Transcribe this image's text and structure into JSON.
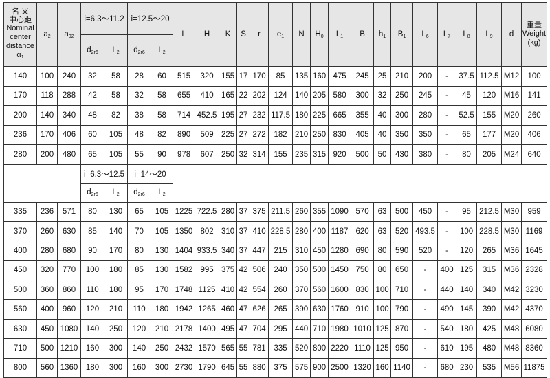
{
  "header": {
    "nominal_cn": [
      "名 义",
      "中心距"
    ],
    "nominal_en": [
      "Nominal",
      "center",
      "distance"
    ],
    "nominal_sym": {
      "t": "α",
      "s": "1"
    },
    "a2": {
      "t": "a",
      "s": "2"
    },
    "a02": {
      "t": "a",
      "s": "02"
    },
    "group1_top": "i=6.3～11.2",
    "group2_top": "i=12.5～20",
    "group1_bottom": "i=6.3～12.5",
    "group2_bottom": "i=14～20",
    "sub_cols": [
      {
        "t": "d",
        "s": "2r6"
      },
      {
        "t": "L",
        "s": "2"
      },
      {
        "t": "d",
        "s": "2r6"
      },
      {
        "t": "L",
        "s": "2"
      }
    ],
    "cols": [
      {
        "t": "L",
        "s": ""
      },
      {
        "t": "H",
        "s": ""
      },
      {
        "t": "K",
        "s": ""
      },
      {
        "t": "S",
        "s": ""
      },
      {
        "t": "r",
        "s": ""
      },
      {
        "t": "e",
        "s": "1"
      },
      {
        "t": "N",
        "s": ""
      },
      {
        "t": "H",
        "s": "0"
      },
      {
        "t": "L",
        "s": "1"
      },
      {
        "t": "B",
        "s": ""
      },
      {
        "t": "h",
        "s": "1"
      },
      {
        "t": "B",
        "s": "1"
      },
      {
        "t": "L",
        "s": "6"
      },
      {
        "t": "L",
        "s": "7"
      },
      {
        "t": "L",
        "s": "8"
      },
      {
        "t": "L",
        "s": "9"
      },
      {
        "t": "d",
        "s": ""
      }
    ],
    "weight_cn": "重量",
    "weight_en": [
      "Weight",
      "(kg)"
    ]
  },
  "rows_top": [
    [
      "140",
      "100",
      "240",
      "32",
      "58",
      "28",
      "60",
      "515",
      "320",
      "155",
      "17",
      "170",
      "85",
      "135",
      "160",
      "475",
      "245",
      "25",
      "210",
      "200",
      "-",
      "37.5",
      "112.5",
      "M12",
      "100"
    ],
    [
      "170",
      "118",
      "288",
      "42",
      "58",
      "32",
      "58",
      "655",
      "410",
      "165",
      "22",
      "202",
      "124",
      "140",
      "205",
      "580",
      "300",
      "32",
      "250",
      "245",
      "-",
      "45",
      "120",
      "M16",
      "141"
    ],
    [
      "200",
      "140",
      "340",
      "48",
      "82",
      "38",
      "58",
      "714",
      "452.5",
      "195",
      "27",
      "232",
      "117.5",
      "180",
      "225",
      "665",
      "355",
      "40",
      "300",
      "280",
      "-",
      "52.5",
      "155",
      "M20",
      "260"
    ],
    [
      "236",
      "170",
      "406",
      "60",
      "105",
      "48",
      "82",
      "890",
      "509",
      "225",
      "27",
      "272",
      "182",
      "210",
      "250",
      "830",
      "405",
      "40",
      "350",
      "350",
      "-",
      "65",
      "177",
      "M20",
      "406"
    ],
    [
      "280",
      "200",
      "480",
      "65",
      "105",
      "55",
      "90",
      "978",
      "607",
      "250",
      "32",
      "314",
      "155",
      "235",
      "315",
      "920",
      "500",
      "50",
      "430",
      "380",
      "-",
      "80",
      "205",
      "M24",
      "640"
    ]
  ],
  "rows_bottom": [
    [
      "335",
      "236",
      "571",
      "80",
      "130",
      "65",
      "105",
      "1225",
      "722.5",
      "280",
      "37",
      "375",
      "211.5",
      "260",
      "355",
      "1090",
      "570",
      "63",
      "500",
      "450",
      "-",
      "95",
      "212.5",
      "M30",
      "959"
    ],
    [
      "370",
      "260",
      "630",
      "85",
      "140",
      "70",
      "105",
      "1350",
      "802",
      "310",
      "37",
      "410",
      "228.5",
      "280",
      "400",
      "1187",
      "620",
      "63",
      "520",
      "493.5",
      "-",
      "100",
      "228.5",
      "M30",
      "1169"
    ],
    [
      "400",
      "280",
      "680",
      "90",
      "170",
      "80",
      "130",
      "1404",
      "933.5",
      "340",
      "37",
      "447",
      "215",
      "310",
      "450",
      "1280",
      "690",
      "80",
      "590",
      "520",
      "-",
      "120",
      "265",
      "M36",
      "1645"
    ],
    [
      "450",
      "320",
      "770",
      "100",
      "180",
      "85",
      "130",
      "1582",
      "995",
      "375",
      "42",
      "506",
      "240",
      "350",
      "500",
      "1450",
      "750",
      "80",
      "650",
      "-",
      "400",
      "125",
      "315",
      "M36",
      "2328"
    ],
    [
      "500",
      "360",
      "860",
      "110",
      "180",
      "95",
      "170",
      "1748",
      "1125",
      "410",
      "42",
      "554",
      "260",
      "370",
      "560",
      "1600",
      "830",
      "100",
      "710",
      "-",
      "440",
      "140",
      "340",
      "M42",
      "3230"
    ],
    [
      "560",
      "400",
      "960",
      "120",
      "210",
      "110",
      "180",
      "1942",
      "1265",
      "460",
      "47",
      "626",
      "265",
      "390",
      "630",
      "1760",
      "910",
      "100",
      "790",
      "-",
      "490",
      "145",
      "390",
      "M42",
      "4370"
    ],
    [
      "630",
      "450",
      "1080",
      "140",
      "250",
      "120",
      "210",
      "2178",
      "1400",
      "495",
      "47",
      "704",
      "295",
      "440",
      "710",
      "1980",
      "1010",
      "125",
      "870",
      "-",
      "540",
      "180",
      "425",
      "M48",
      "6080"
    ],
    [
      "710",
      "500",
      "1210",
      "160",
      "300",
      "140",
      "250",
      "2432",
      "1570",
      "565",
      "55",
      "781",
      "335",
      "520",
      "800",
      "2220",
      "1110",
      "125",
      "950",
      "-",
      "610",
      "195",
      "480",
      "M48",
      "8360"
    ],
    [
      "800",
      "560",
      "1360",
      "180",
      "300",
      "160",
      "300",
      "2730",
      "1790",
      "645",
      "55",
      "880",
      "375",
      "575",
      "900",
      "2500",
      "1320",
      "160",
      "1140",
      "-",
      "680",
      "230",
      "535",
      "M56",
      "11875"
    ]
  ]
}
